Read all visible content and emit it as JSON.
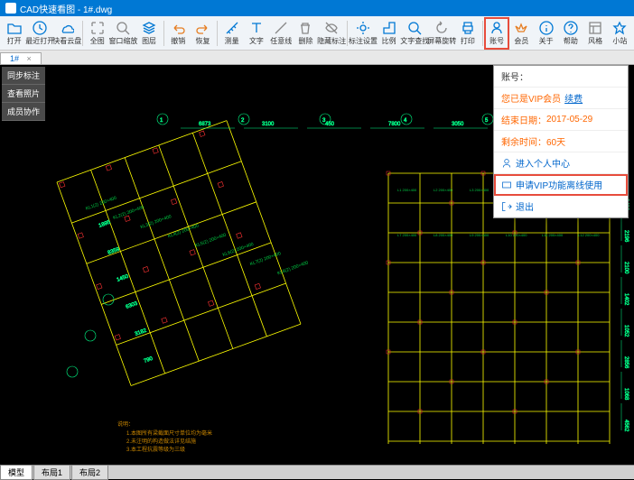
{
  "title": "CAD快速看图 - 1#.dwg",
  "toolbar": [
    {
      "label": "打开",
      "icon": "folder",
      "color": "#0078d4"
    },
    {
      "label": "最近打开",
      "icon": "clock",
      "color": "#0078d4"
    },
    {
      "label": "快看云盘",
      "icon": "cloud",
      "color": "#0078d4"
    },
    {
      "label": "全图",
      "icon": "fullscreen",
      "color": "#888"
    },
    {
      "label": "窗口缩放",
      "icon": "zoom",
      "color": "#888"
    },
    {
      "label": "图层",
      "icon": "layers",
      "color": "#0078d4"
    },
    {
      "label": "撤销",
      "icon": "undo",
      "color": "#e67e22"
    },
    {
      "label": "恢复",
      "icon": "redo",
      "color": "#e67e22"
    },
    {
      "label": "测量",
      "icon": "measure",
      "color": "#0078d4"
    },
    {
      "label": "文字",
      "icon": "text",
      "color": "#0078d4"
    },
    {
      "label": "任意线",
      "icon": "line",
      "color": "#888"
    },
    {
      "label": "删除",
      "icon": "delete",
      "color": "#888"
    },
    {
      "label": "隐藏标注",
      "icon": "hide",
      "color": "#888"
    },
    {
      "label": "标注设置",
      "icon": "settings",
      "color": "#0078d4"
    },
    {
      "label": "比例",
      "icon": "scale",
      "color": "#0078d4"
    },
    {
      "label": "文字查找",
      "icon": "search",
      "color": "#0078d4"
    },
    {
      "label": "屏幕旋转",
      "icon": "rotate",
      "color": "#888"
    },
    {
      "label": "打印",
      "icon": "print",
      "color": "#0078d4"
    },
    {
      "label": "账号",
      "icon": "user",
      "color": "#0078d4",
      "highlight": true
    },
    {
      "label": "会员",
      "icon": "vip",
      "color": "#e67e22"
    },
    {
      "label": "关于",
      "icon": "info",
      "color": "#0078d4"
    },
    {
      "label": "帮助",
      "icon": "help",
      "color": "#0078d4"
    },
    {
      "label": "风格",
      "icon": "style",
      "color": "#888"
    },
    {
      "label": "小站",
      "icon": "site",
      "color": "#0078d4"
    }
  ],
  "docTab": "1#",
  "sidepanel": [
    "同步标注",
    "查看照片",
    "成员协作"
  ],
  "dropdown": {
    "accountLabel": "账号：",
    "vipStatus": "您已是VIP会员",
    "renewLink": "续费",
    "endDateLabel": "结束日期：",
    "endDate": "2017-05-29",
    "remainDaysLabel": "剩余时间：",
    "remainDays": "60天",
    "enterCenter": "进入个人中心",
    "applyVip": "申请VIP功能离线使用",
    "logout": "退出"
  },
  "bottomTabs": [
    "模型",
    "布局1",
    "布局2"
  ],
  "cad": {
    "bgColor": "#000000",
    "structColor": "#ffff00",
    "gridColor": "#00ff88",
    "textColor": "#00cc44",
    "noteColor": "#cc8800",
    "dimColor": "#00aaff",
    "redMark": "#ff3333",
    "dims": [
      "6873",
      "3100",
      "450",
      "7800",
      "3050",
      "3825",
      "2400",
      "2196",
      "2100",
      "1402",
      "1052",
      "2856",
      "1068",
      "4562",
      "1895",
      "8359",
      "1450",
      "6303",
      "3182",
      "790"
    ],
    "noteHeader": "说明：",
    "notes": [
      "1.本图所有梁截面尺寸单位均为毫米",
      "2.未注明的构造做法详见结施",
      "3.本工程抗震等级为三级"
    ]
  }
}
